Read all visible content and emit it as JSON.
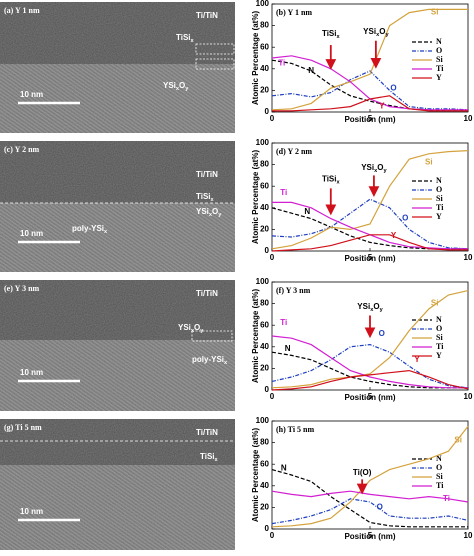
{
  "micrographs": [
    {
      "title": "(a) Y 1 nm",
      "labels": [
        "Ti/TiN",
        [
          "TiSi",
          "x"
        ],
        [
          "YSi",
          "x",
          "O",
          "y"
        ]
      ],
      "scale_bar": "10 nm"
    },
    {
      "title": "(c) Y 2 nm",
      "labels": [
        "Ti/TiN",
        [
          "TiSi",
          "x"
        ],
        [
          "YSi",
          "x",
          "O",
          "y"
        ],
        [
          "poly-YSi",
          "x"
        ]
      ],
      "scale_bar": "10 nm"
    },
    {
      "title": "(e) Y 3 nm",
      "labels": [
        "Ti/TiN",
        [
          "YSi",
          "x",
          "O",
          "y"
        ],
        [
          "poly-YSi",
          "x"
        ]
      ],
      "scale_bar": "10 nm"
    },
    {
      "title": "(g) Ti 5 nm",
      "labels": [
        "Ti/TiN",
        [
          "TiSi",
          "x"
        ]
      ],
      "scale_bar": "10 nm"
    }
  ],
  "chart_data": [
    {
      "type": "line",
      "title": "(b) Y 1 nm",
      "x_label": "Position (nm)",
      "y_label": "Atomic Percentage (at%)",
      "x": [
        0,
        1,
        2,
        3,
        4,
        5,
        6,
        7,
        8,
        9,
        10
      ],
      "xlim": [
        0,
        10
      ],
      "xticks": [
        0,
        5,
        10
      ],
      "ylim": [
        0,
        100
      ],
      "yticks": [
        0,
        20,
        40,
        60,
        80,
        100
      ],
      "series": [
        {
          "name": "N",
          "color": "#000000",
          "dash": "dash",
          "values": [
            48,
            45,
            38,
            25,
            15,
            10,
            6,
            3,
            2,
            1,
            1
          ]
        },
        {
          "name": "O",
          "color": "#1f3fbf",
          "dash": "dashdot",
          "values": [
            15,
            17,
            14,
            18,
            30,
            38,
            20,
            5,
            3,
            3,
            2
          ]
        },
        {
          "name": "Si",
          "color": "#d4a23c",
          "dash": "solid",
          "values": [
            2,
            3,
            8,
            22,
            28,
            35,
            80,
            92,
            95,
            95,
            95
          ]
        },
        {
          "name": "Ti",
          "color": "#d21fd2",
          "dash": "solid",
          "values": [
            50,
            52,
            48,
            40,
            28,
            12,
            5,
            3,
            2,
            2,
            2
          ]
        },
        {
          "name": "Y",
          "color": "#d0101a",
          "dash": "solid",
          "values": [
            1,
            1,
            2,
            3,
            5,
            12,
            15,
            3,
            1,
            1,
            1
          ]
        }
      ],
      "annotations": [
        {
          "text": "Si",
          "color": "#d4a23c"
        },
        {
          "text": "Ti",
          "color": "#d21fd2"
        },
        {
          "text": [
            "TiSi",
            "x"
          ],
          "color": "#000000"
        },
        {
          "text": "N",
          "color": "#000000"
        },
        {
          "text": [
            "YSi",
            "x",
            "O",
            "y"
          ],
          "color": "#000000"
        },
        {
          "text": "O",
          "color": "#1f3fbf"
        },
        {
          "text": "Y",
          "color": "#d0101a"
        }
      ]
    },
    {
      "type": "line",
      "title": "(d) Y 2 nm",
      "x_label": "Position (nm)",
      "y_label": "Atomic Percentage (at%)",
      "x": [
        0,
        1,
        2,
        3,
        4,
        5,
        6,
        7,
        8,
        9,
        10
      ],
      "xlim": [
        0,
        10
      ],
      "xticks": [
        0,
        5,
        10
      ],
      "ylim": [
        0,
        100
      ],
      "yticks": [
        0,
        20,
        40,
        60,
        80,
        100
      ],
      "series": [
        {
          "name": "N",
          "color": "#000000",
          "dash": "dash",
          "values": [
            40,
            35,
            30,
            22,
            14,
            8,
            5,
            3,
            2,
            2,
            2
          ]
        },
        {
          "name": "O",
          "color": "#1f3fbf",
          "dash": "dashdot",
          "values": [
            14,
            13,
            16,
            22,
            35,
            48,
            40,
            20,
            8,
            3,
            2
          ]
        },
        {
          "name": "Si",
          "color": "#d4a23c",
          "dash": "solid",
          "values": [
            2,
            5,
            12,
            22,
            20,
            25,
            60,
            85,
            90,
            92,
            93
          ]
        },
        {
          "name": "Ti",
          "color": "#d21fd2",
          "dash": "solid",
          "values": [
            45,
            45,
            40,
            30,
            22,
            15,
            8,
            4,
            3,
            2,
            2
          ]
        },
        {
          "name": "Y",
          "color": "#d0101a",
          "dash": "solid",
          "values": [
            0,
            1,
            2,
            5,
            10,
            15,
            15,
            8,
            2,
            1,
            1
          ]
        }
      ],
      "annotations": [
        {
          "text": "Si",
          "color": "#d4a23c"
        },
        {
          "text": "Ti",
          "color": "#d21fd2"
        },
        {
          "text": "N",
          "color": "#000000"
        },
        {
          "text": [
            "TiSi",
            "x"
          ],
          "color": "#000000"
        },
        {
          "text": [
            "YSi",
            "x",
            "O",
            "y"
          ],
          "color": "#000000"
        },
        {
          "text": "O",
          "color": "#1f3fbf"
        },
        {
          "text": "Y",
          "color": "#d0101a"
        }
      ]
    },
    {
      "type": "line",
      "title": "(f) Y 3 nm",
      "x_label": "Position (nm)",
      "y_label": "Atomic Percentage (at%)",
      "x": [
        0,
        1,
        2,
        3,
        4,
        5,
        6,
        7,
        8,
        9,
        10
      ],
      "xlim": [
        0,
        10
      ],
      "xticks": [
        0,
        5,
        10
      ],
      "ylim": [
        0,
        100
      ],
      "yticks": [
        0,
        20,
        40,
        60,
        80,
        100
      ],
      "series": [
        {
          "name": "N",
          "color": "#000000",
          "dash": "dash",
          "values": [
            35,
            32,
            28,
            20,
            12,
            8,
            5,
            3,
            2,
            2,
            2
          ]
        },
        {
          "name": "O",
          "color": "#1f3fbf",
          "dash": "dashdot",
          "values": [
            8,
            12,
            18,
            28,
            40,
            42,
            35,
            22,
            10,
            4,
            2
          ]
        },
        {
          "name": "Si",
          "color": "#d4a23c",
          "dash": "solid",
          "values": [
            2,
            3,
            5,
            10,
            12,
            15,
            30,
            55,
            75,
            88,
            92
          ]
        },
        {
          "name": "Ti",
          "color": "#d21fd2",
          "dash": "solid",
          "values": [
            50,
            48,
            42,
            30,
            18,
            12,
            8,
            5,
            3,
            2,
            2
          ]
        },
        {
          "name": "Y",
          "color": "#d0101a",
          "dash": "solid",
          "values": [
            0,
            1,
            3,
            8,
            12,
            14,
            16,
            18,
            12,
            5,
            1
          ]
        }
      ],
      "annotations": [
        {
          "text": "Si",
          "color": "#d4a23c"
        },
        {
          "text": "Ti",
          "color": "#d21fd2"
        },
        {
          "text": "N",
          "color": "#000000"
        },
        {
          "text": [
            "YSi",
            "x",
            "O",
            "y"
          ],
          "color": "#000000"
        },
        {
          "text": "O",
          "color": "#1f3fbf"
        },
        {
          "text": "Y",
          "color": "#d0101a"
        }
      ]
    },
    {
      "type": "line",
      "title": "(h) Ti 5 nm",
      "x_label": "Position (nm)",
      "y_label": "Atomic Percentage (at%)",
      "x": [
        0,
        1,
        2,
        3,
        4,
        5,
        6,
        7,
        8,
        9,
        10
      ],
      "xlim": [
        0,
        10
      ],
      "xticks": [
        0,
        5,
        10
      ],
      "ylim": [
        0,
        100
      ],
      "yticks": [
        0,
        20,
        40,
        60,
        80,
        100
      ],
      "series": [
        {
          "name": "N",
          "color": "#000000",
          "dash": "dash",
          "values": [
            55,
            50,
            44,
            30,
            18,
            6,
            3,
            2,
            2,
            2,
            2
          ]
        },
        {
          "name": "O",
          "color": "#1f3fbf",
          "dash": "dashdot",
          "values": [
            5,
            8,
            12,
            18,
            28,
            25,
            12,
            10,
            10,
            12,
            8
          ]
        },
        {
          "name": "Si",
          "color": "#d4a23c",
          "dash": "solid",
          "values": [
            2,
            3,
            5,
            10,
            25,
            45,
            55,
            60,
            65,
            72,
            95
          ]
        },
        {
          "name": "Ti",
          "color": "#d21fd2",
          "dash": "solid",
          "values": [
            35,
            32,
            30,
            33,
            35,
            32,
            30,
            28,
            30,
            28,
            25
          ]
        }
      ],
      "annotations": [
        {
          "text": "Si",
          "color": "#d4a23c"
        },
        {
          "text": "N",
          "color": "#000000"
        },
        {
          "text": "Ti(O)",
          "color": "#000000"
        },
        {
          "text": "O",
          "color": "#1f3fbf"
        },
        {
          "text": "Ti",
          "color": "#d21fd2"
        }
      ]
    }
  ]
}
